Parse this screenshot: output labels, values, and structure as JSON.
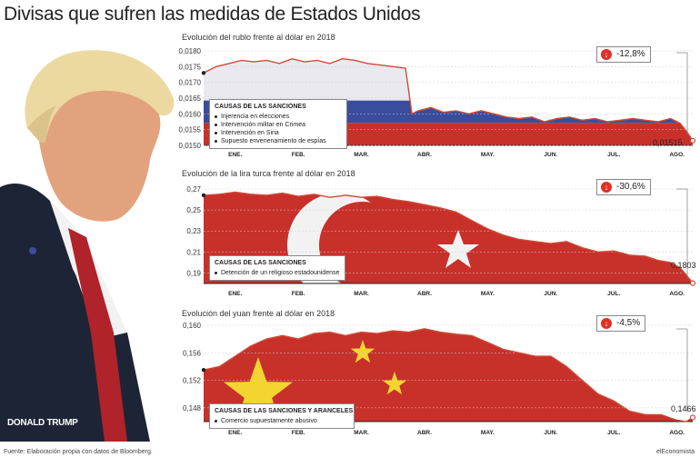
{
  "header": {
    "title": "Divisas que sufren las medidas de Estados Unidos"
  },
  "portrait": {
    "label": "DONALD TRUMP"
  },
  "footer": {
    "source": "Fuente: Elaboración propia con datos de Bloomberg.",
    "brand": "elEconomista"
  },
  "colors": {
    "line": "#d04a36",
    "bg_red": "#c8302a",
    "badge_red": "#e03025",
    "blue": "#3a4d9c",
    "yellow": "#f4d430"
  },
  "chart_data": [
    {
      "type": "line",
      "title": "Evolución del rublo frente al dólar en 2018",
      "xlabel": "",
      "ylabel": "",
      "ylim": [
        0.015,
        0.018
      ],
      "yticks": [
        "0,0180",
        "0,0175",
        "0,0170",
        "0,0165",
        "0,0160",
        "0,0155",
        "0,0150"
      ],
      "ytick_values": [
        0.018,
        0.0175,
        0.017,
        0.0165,
        0.016,
        0.0155,
        0.015
      ],
      "months": [
        "ENE.",
        "FEB.",
        "MAR.",
        "ABR.",
        "MAY.",
        "JUN.",
        "JUL.",
        "AGO."
      ],
      "month_positions": [
        0.5,
        1.5,
        2.5,
        3.5,
        4.5,
        5.5,
        6.5,
        7.5
      ],
      "x_end": 7.75,
      "x": [
        0,
        0.2,
        0.4,
        0.6,
        0.8,
        1.0,
        1.2,
        1.4,
        1.6,
        1.8,
        2.0,
        2.2,
        2.4,
        2.6,
        2.8,
        3.0,
        3.2,
        3.3,
        3.4,
        3.6,
        3.8,
        4.0,
        4.2,
        4.4,
        4.6,
        4.8,
        5.0,
        5.2,
        5.4,
        5.6,
        5.8,
        6.0,
        6.2,
        6.4,
        6.6,
        6.8,
        7.0,
        7.2,
        7.4,
        7.55,
        7.65,
        7.75
      ],
      "values": [
        0.0173,
        0.0175,
        0.0176,
        0.0177,
        0.01765,
        0.0177,
        0.0176,
        0.01775,
        0.01765,
        0.0177,
        0.0176,
        0.01775,
        0.0177,
        0.0176,
        0.01755,
        0.0175,
        0.01745,
        0.016,
        0.0161,
        0.0162,
        0.01605,
        0.0161,
        0.016,
        0.0161,
        0.016,
        0.0159,
        0.01585,
        0.0159,
        0.01575,
        0.01585,
        0.0159,
        0.0158,
        0.01585,
        0.01575,
        0.0158,
        0.01585,
        0.0158,
        0.01575,
        0.01585,
        0.0157,
        0.01545,
        0.01515
      ],
      "end_label": "0,01515",
      "change": "-12,8%",
      "causes_title": "CAUSAS DE LAS SANCIONES",
      "causes": [
        "Injerencia en elecciones",
        "Intervención militar en Crimea",
        "Intervención en Siria",
        "Supuesto envenenamiento de espías"
      ]
    },
    {
      "type": "line",
      "title": "Evolución de la lira turca frente al dólar en 2018",
      "xlabel": "",
      "ylabel": "",
      "ylim": [
        0.18,
        0.27
      ],
      "yticks": [
        "0,27",
        "0,25",
        "0,23",
        "0,21",
        "0,19"
      ],
      "ytick_values": [
        0.27,
        0.25,
        0.23,
        0.21,
        0.19
      ],
      "months": [
        "ENE.",
        "FEB.",
        "MAR.",
        "ABR.",
        "MAY.",
        "JUN.",
        "JUL.",
        "AGO."
      ],
      "month_positions": [
        0.5,
        1.5,
        2.5,
        3.5,
        4.5,
        5.5,
        6.5,
        7.5
      ],
      "x_end": 7.75,
      "x": [
        0,
        0.25,
        0.5,
        0.75,
        1.0,
        1.25,
        1.5,
        1.75,
        2.0,
        2.25,
        2.5,
        2.75,
        3.0,
        3.25,
        3.5,
        3.75,
        4.0,
        4.25,
        4.5,
        4.75,
        5.0,
        5.25,
        5.5,
        5.75,
        6.0,
        6.25,
        6.5,
        6.75,
        7.0,
        7.2,
        7.4,
        7.55,
        7.65,
        7.75
      ],
      "values": [
        0.264,
        0.265,
        0.267,
        0.265,
        0.264,
        0.266,
        0.263,
        0.265,
        0.262,
        0.264,
        0.262,
        0.263,
        0.26,
        0.258,
        0.255,
        0.252,
        0.248,
        0.24,
        0.232,
        0.226,
        0.222,
        0.22,
        0.218,
        0.22,
        0.214,
        0.21,
        0.211,
        0.207,
        0.206,
        0.202,
        0.2,
        0.195,
        0.188,
        0.1803
      ],
      "end_label": "0,1803",
      "change": "-30,6%",
      "causes_title": "CAUSAS DE LAS SANCIONES",
      "causes": [
        "Detención de un religioso estadounidense"
      ]
    },
    {
      "type": "line",
      "title": "Evolución del yuan frente al dólar en 2018",
      "xlabel": "",
      "ylabel": "",
      "ylim": [
        0.146,
        0.16
      ],
      "yticks": [
        "0,160",
        "0,156",
        "0,152",
        "0,148"
      ],
      "ytick_values": [
        0.16,
        0.156,
        0.152,
        0.148
      ],
      "months": [
        "ENE.",
        "FEB.",
        "MAR.",
        "ABR.",
        "MAY.",
        "JUN.",
        "JUL.",
        "AGO."
      ],
      "month_positions": [
        0.5,
        1.5,
        2.5,
        3.5,
        4.5,
        5.5,
        6.5,
        7.5
      ],
      "x_end": 7.75,
      "x": [
        0,
        0.25,
        0.5,
        0.75,
        1.0,
        1.25,
        1.5,
        1.75,
        2.0,
        2.25,
        2.5,
        2.75,
        3.0,
        3.25,
        3.5,
        3.75,
        4.0,
        4.25,
        4.5,
        4.75,
        5.0,
        5.25,
        5.5,
        5.75,
        6.0,
        6.25,
        6.5,
        6.75,
        7.0,
        7.25,
        7.5,
        7.65,
        7.75
      ],
      "values": [
        0.1535,
        0.154,
        0.1555,
        0.157,
        0.158,
        0.1585,
        0.158,
        0.1588,
        0.159,
        0.1585,
        0.159,
        0.1588,
        0.1592,
        0.159,
        0.1595,
        0.159,
        0.1587,
        0.1585,
        0.1575,
        0.1565,
        0.156,
        0.1555,
        0.1555,
        0.154,
        0.152,
        0.15,
        0.149,
        0.1475,
        0.147,
        0.147,
        0.1462,
        0.146,
        0.1466
      ],
      "end_label": "0,1466",
      "change": "-4,5%",
      "causes_title": "CAUSAS DE LAS SANCIONES Y ARANCELES",
      "causes": [
        "Comercio supuestamente abusivo"
      ]
    }
  ]
}
